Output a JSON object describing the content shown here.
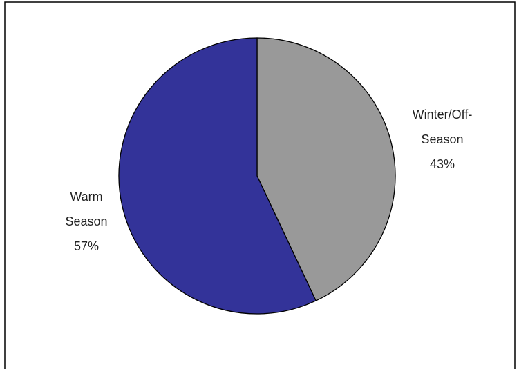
{
  "chart_data": {
    "type": "pie",
    "categories": [
      "Winter/Off-Season",
      "Warm Season"
    ],
    "values": [
      43,
      57
    ],
    "value_labels": [
      "43%",
      "57%"
    ],
    "colors": [
      "#999999",
      "#333399"
    ]
  }
}
